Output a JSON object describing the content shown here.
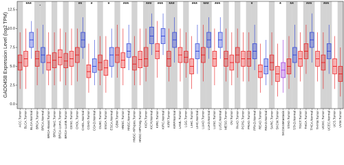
{
  "chart_data": {
    "type": "box",
    "y_label": "GADD45B Expression Level (log2 TPM)",
    "categories": [
      "ACC.Tumor",
      "BLCA.Tumor",
      "BLCA.Normal",
      "BRCA.Tumor",
      "BRCA.Normal",
      "BRCA-Basal.Tumor",
      "BRCA-Her2.Tumor",
      "BRCA-LumA.Tumor",
      "BRCA-LumB.Tumor",
      "CESC.Tumor",
      "CHOL.Tumor",
      "CHOL.Normal",
      "COAD.Tumor",
      "COAD.Normal",
      "DLBC.Tumor",
      "ESCA.Tumor",
      "ESCA.Normal",
      "GBM.Tumor",
      "HNSC.Tumor",
      "HNSC.Normal",
      "HNSC-HPVpos.Tumor",
      "HNSC-HPVneg.Tumor",
      "KICH.Tumor",
      "KICH.Normal",
      "KIRC.Tumor",
      "KIRC.Normal",
      "KIRP.Tumor",
      "KIRP.Normal",
      "LAML.Tumor",
      "LGG.Tumor",
      "LIHC.Tumor",
      "LIHC.Normal",
      "LUAD.Tumor",
      "LUAD.Normal",
      "LUSC.Tumor",
      "LUSC.Normal",
      "MESO.Tumor",
      "OV.Tumor",
      "PAAD.Tumor",
      "PCPG.Tumor",
      "PRAD.Tumor",
      "PRAD.Normal",
      "READ.Tumor",
      "READ.Normal",
      "SARC.Tumor",
      "SKCM.Tumor",
      "SKCM.Metastasis",
      "STAD.Tumor",
      "STAD.Normal",
      "TGCT.Tumor",
      "THCA.Tumor",
      "THCA.Normal",
      "THYM.Tumor",
      "UCEC.Tumor",
      "UCEC.Normal",
      "UCS.Tumor",
      "UVM.Tumor"
    ],
    "low": [
      2,
      2,
      6,
      2.5,
      4,
      2.5,
      2.5,
      3,
      2.5,
      2.5,
      3,
      6,
      1.5,
      2.5,
      2.5,
      1.5,
      3.5,
      3.5,
      2.5,
      4.5,
      2.5,
      2.5,
      3,
      6.5,
      3.5,
      6.5,
      3,
      5.5,
      3,
      3.5,
      2,
      4,
      3,
      6,
      2.5,
      6,
      3,
      2.5,
      3.5,
      3,
      3,
      4.5,
      1.5,
      2.5,
      2.5,
      1,
      1.5,
      2,
      3.5,
      3,
      4,
      5.5,
      3,
      2,
      4,
      2,
      1
    ],
    "q1": [
      4.5,
      5,
      7.5,
      5,
      5.5,
      4.5,
      4.8,
      5.2,
      4.8,
      5,
      5.5,
      7.5,
      3.5,
      4.2,
      4.5,
      3.8,
      5,
      5.5,
      4.8,
      6.2,
      4.5,
      4.8,
      5,
      8,
      6,
      8,
      5,
      7.5,
      5.5,
      5.5,
      4,
      6,
      5.5,
      7.5,
      5,
      7.5,
      5,
      4.5,
      5.5,
      5,
      5,
      6,
      3.5,
      4,
      4.5,
      3,
      3.5,
      4,
      5.5,
      5,
      6,
      7.5,
      5,
      4.5,
      6,
      4,
      3
    ],
    "median": [
      5.5,
      6,
      8.5,
      6,
      6.5,
      5.5,
      5.8,
      6.2,
      5.7,
      6,
      6.5,
      8.5,
      4.3,
      5,
      5.5,
      4.8,
      6.5,
      6.5,
      5.8,
      7,
      5.3,
      5.9,
      6,
      9,
      7,
      9,
      6,
      8.5,
      6.5,
      6.2,
      5,
      7,
      6.5,
      8.5,
      6,
      8.5,
      6,
      5.5,
      6.5,
      6,
      6,
      7,
      4.3,
      5,
      5.5,
      4,
      4.5,
      5,
      6.5,
      6,
      7,
      8.5,
      6,
      5.5,
      7,
      5,
      4
    ],
    "q3": [
      6.5,
      7,
      9.5,
      7,
      7.5,
      6.5,
      6.8,
      7.2,
      6.7,
      7,
      7.5,
      9.5,
      5.2,
      6,
      6.5,
      5.8,
      7.5,
      7.5,
      6.8,
      8,
      6.3,
      7,
      7.5,
      10.2,
      8,
      10,
      7,
      9.5,
      7.5,
      7,
      6,
      8,
      7.5,
      9.5,
      7,
      9.5,
      7,
      6.5,
      7.5,
      7,
      7,
      8,
      5.2,
      6,
      6.5,
      5,
      5.5,
      6,
      7.5,
      7,
      8,
      9.5,
      7,
      6.5,
      8,
      6,
      5
    ],
    "high": [
      9.5,
      10,
      11,
      10,
      10.5,
      9.5,
      9.5,
      10,
      9.5,
      10,
      10,
      11.5,
      8,
      8.5,
      9,
      9,
      10,
      10.5,
      10,
      10.5,
      9,
      10,
      10,
      12,
      11,
      12,
      10,
      11.5,
      10,
      9.5,
      9,
      10.5,
      10.5,
      11.5,
      10,
      11.5,
      10,
      9.5,
      10,
      9.5,
      9.5,
      10.5,
      8,
      8.5,
      9.5,
      8,
      8.5,
      9,
      10.5,
      9.5,
      10.5,
      12,
      9.5,
      9.5,
      10.5,
      9,
      7.5
    ],
    "colors": [
      "#e8191c",
      "#e8191c",
      "#2b3fd6",
      "#e8191c",
      "#2b3fd6",
      "#e8191c",
      "#e8191c",
      "#e8191c",
      "#e8191c",
      "#e8191c",
      "#e8191c",
      "#2b3fd6",
      "#e8191c",
      "#2b3fd6",
      "#e8191c",
      "#e8191c",
      "#2b3fd6",
      "#e8191c",
      "#e8191c",
      "#2b3fd6",
      "#e8191c",
      "#e8191c",
      "#e8191c",
      "#2b3fd6",
      "#e8191c",
      "#2b3fd6",
      "#e8191c",
      "#2b3fd6",
      "#e8191c",
      "#e8191c",
      "#e8191c",
      "#2b3fd6",
      "#e8191c",
      "#2b3fd6",
      "#e8191c",
      "#2b3fd6",
      "#e8191c",
      "#e8191c",
      "#e8191c",
      "#e8191c",
      "#e8191c",
      "#2b3fd6",
      "#e8191c",
      "#2b3fd6",
      "#e8191c",
      "#e8191c",
      "#9b30d9",
      "#e8191c",
      "#2b3fd6",
      "#e8191c",
      "#e8191c",
      "#2b3fd6",
      "#e8191c",
      "#e8191c",
      "#2b3fd6",
      "#e8191c",
      "#e8191c"
    ],
    "significance": [
      null,
      null,
      "***",
      null,
      ".",
      null,
      null,
      null,
      null,
      null,
      null,
      "**",
      null,
      "*",
      null,
      null,
      "*",
      null,
      null,
      "***",
      null,
      null,
      null,
      "***",
      null,
      "***",
      null,
      "***",
      null,
      null,
      null,
      "***",
      null,
      "***",
      null,
      "***",
      null,
      null,
      null,
      null,
      null,
      "*",
      null,
      null,
      null,
      null,
      "*",
      null,
      "**",
      null,
      null,
      "***",
      null,
      null,
      "***",
      null,
      null
    ],
    "ylim": [
      -0.6,
      13.6
    ],
    "yticks": [
      {
        "value": 0,
        "label": "0.0"
      },
      2.5,
      {
        "value": 5,
        "label": "5.0"
      },
      7.5,
      {
        "value": 10,
        "label": "10.0"
      },
      12.5
    ],
    "band_color": "#d3d3d3"
  }
}
